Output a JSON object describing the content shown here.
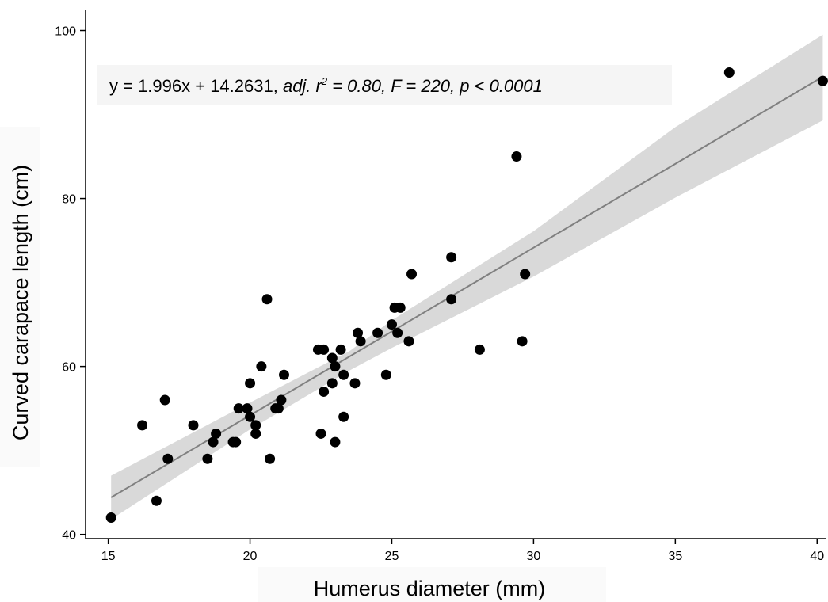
{
  "chart_data": {
    "type": "scatter",
    "xlabel": "Humerus diameter (mm)",
    "ylabel": "Curved carapace length (cm)",
    "xlim": [
      14.2,
      40.3
    ],
    "ylim": [
      39.5,
      102.5
    ],
    "x_ticks": [
      15,
      20,
      25,
      30,
      35,
      40
    ],
    "x_tick_labels": [
      "15",
      "20",
      "25",
      "30",
      "35",
      "40"
    ],
    "y_ticks": [
      40,
      60,
      80,
      100
    ],
    "y_tick_labels": [
      "40",
      "60",
      "80",
      "100"
    ],
    "grid": false,
    "annotation": {
      "plain": "y = 1.996x + 14.2631, ",
      "adj": "adj. r",
      "sup": "2",
      "stats": " = 0.80, F = 220, p < 0.0001"
    },
    "fit_line": {
      "slope": 1.996,
      "intercept": 14.2631,
      "x_range": [
        15.1,
        40.2
      ],
      "ci_lower": [
        [
          15.1,
          41.8
        ],
        [
          20.0,
          52.5
        ],
        [
          23.5,
          59.5
        ],
        [
          25.0,
          62.2
        ],
        [
          30.0,
          70.7
        ],
        [
          35.0,
          80.1
        ],
        [
          40.2,
          89.3
        ]
      ],
      "ci_upper": [
        [
          15.1,
          47.0
        ],
        [
          20.0,
          55.7
        ],
        [
          23.5,
          61.8
        ],
        [
          25.0,
          65.5
        ],
        [
          30.0,
          76.1
        ],
        [
          35.0,
          88.5
        ],
        [
          40.2,
          99.5
        ]
      ]
    },
    "series": [
      {
        "points": [
          [
            15.1,
            42
          ],
          [
            16.2,
            53
          ],
          [
            16.7,
            44
          ],
          [
            17.0,
            56
          ],
          [
            17.1,
            49
          ],
          [
            18.0,
            53
          ],
          [
            18.5,
            49
          ],
          [
            18.7,
            51
          ],
          [
            18.8,
            52
          ],
          [
            19.4,
            51
          ],
          [
            19.5,
            51
          ],
          [
            19.6,
            55
          ],
          [
            19.9,
            55
          ],
          [
            20.0,
            54
          ],
          [
            20.0,
            58
          ],
          [
            20.2,
            52
          ],
          [
            20.2,
            53
          ],
          [
            20.4,
            60
          ],
          [
            20.6,
            68
          ],
          [
            20.7,
            49
          ],
          [
            20.9,
            55
          ],
          [
            21.0,
            55
          ],
          [
            21.1,
            56
          ],
          [
            21.2,
            59
          ],
          [
            22.4,
            62
          ],
          [
            22.5,
            52
          ],
          [
            22.6,
            57
          ],
          [
            22.6,
            62
          ],
          [
            22.9,
            58
          ],
          [
            22.9,
            61
          ],
          [
            23.0,
            51
          ],
          [
            23.0,
            60
          ],
          [
            23.2,
            62
          ],
          [
            23.3,
            54
          ],
          [
            23.3,
            59
          ],
          [
            23.7,
            58
          ],
          [
            23.8,
            64
          ],
          [
            23.9,
            63
          ],
          [
            24.5,
            64
          ],
          [
            24.8,
            59
          ],
          [
            25.0,
            65
          ],
          [
            25.1,
            67
          ],
          [
            25.2,
            64
          ],
          [
            25.3,
            67
          ],
          [
            25.6,
            63
          ],
          [
            25.7,
            71
          ],
          [
            27.1,
            68
          ],
          [
            27.1,
            73
          ],
          [
            28.1,
            62
          ],
          [
            29.4,
            85
          ],
          [
            29.6,
            63
          ],
          [
            29.7,
            71
          ],
          [
            36.9,
            95
          ],
          [
            40.2,
            94
          ]
        ]
      }
    ],
    "colors": {
      "points": "#000000",
      "fit_line": "#808080",
      "ci_band": "#d9d9d9",
      "annotation_bg": "#f5f5f5",
      "axis": "#000000"
    }
  }
}
